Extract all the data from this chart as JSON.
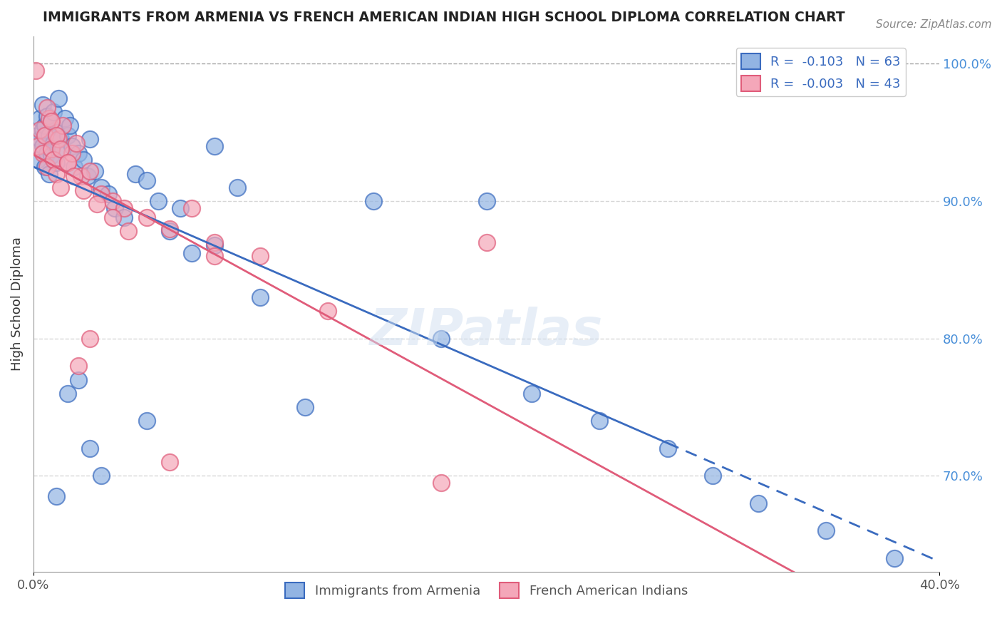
{
  "title": "IMMIGRANTS FROM ARMENIA VS FRENCH AMERICAN INDIAN HIGH SCHOOL DIPLOMA CORRELATION CHART",
  "source": "Source: ZipAtlas.com",
  "ylabel": "High School Diploma",
  "xmin": 0.0,
  "xmax": 0.4,
  "ymin": 0.63,
  "ymax": 1.02,
  "yticks": [
    0.7,
    0.8,
    0.9,
    1.0
  ],
  "ytick_labels": [
    "70.0%",
    "80.0%",
    "90.0%",
    "100.0%"
  ],
  "xtick_labels": [
    "0.0%",
    "40.0%"
  ],
  "legend_labels": [
    "Immigrants from Armenia",
    "French American Indians"
  ],
  "blue_color": "#92b4e3",
  "pink_color": "#f4a7b9",
  "blue_line_color": "#3a6bbf",
  "pink_line_color": "#e05c7a",
  "r_blue": -0.103,
  "n_blue": 63,
  "r_pink": -0.003,
  "n_pink": 43,
  "watermark": "ZIPatlas",
  "blue_scatter_x": [
    0.001,
    0.002,
    0.003,
    0.003,
    0.004,
    0.004,
    0.004,
    0.005,
    0.005,
    0.006,
    0.006,
    0.007,
    0.007,
    0.008,
    0.008,
    0.009,
    0.009,
    0.01,
    0.01,
    0.011,
    0.012,
    0.013,
    0.014,
    0.015,
    0.016,
    0.017,
    0.018,
    0.02,
    0.022,
    0.024,
    0.025,
    0.027,
    0.03,
    0.033,
    0.036,
    0.04,
    0.045,
    0.05,
    0.055,
    0.06,
    0.065,
    0.07,
    0.08,
    0.09,
    0.1,
    0.12,
    0.15,
    0.18,
    0.2,
    0.22,
    0.25,
    0.28,
    0.3,
    0.32,
    0.35,
    0.38,
    0.01,
    0.015,
    0.02,
    0.025,
    0.03,
    0.05,
    0.08
  ],
  "blue_scatter_y": [
    0.947,
    0.93,
    0.96,
    0.945,
    0.952,
    0.97,
    0.94,
    0.925,
    0.955,
    0.962,
    0.935,
    0.948,
    0.92,
    0.958,
    0.933,
    0.942,
    0.965,
    0.95,
    0.928,
    0.975,
    0.945,
    0.938,
    0.96,
    0.948,
    0.955,
    0.94,
    0.925,
    0.935,
    0.93,
    0.918,
    0.945,
    0.922,
    0.91,
    0.905,
    0.895,
    0.888,
    0.92,
    0.915,
    0.9,
    0.878,
    0.895,
    0.862,
    0.94,
    0.91,
    0.83,
    0.75,
    0.9,
    0.8,
    0.9,
    0.76,
    0.74,
    0.72,
    0.7,
    0.68,
    0.66,
    0.64,
    0.685,
    0.76,
    0.77,
    0.72,
    0.7,
    0.74,
    0.868
  ],
  "pink_scatter_x": [
    0.001,
    0.002,
    0.003,
    0.004,
    0.005,
    0.006,
    0.007,
    0.008,
    0.009,
    0.01,
    0.011,
    0.012,
    0.013,
    0.015,
    0.017,
    0.019,
    0.021,
    0.025,
    0.03,
    0.035,
    0.04,
    0.05,
    0.06,
    0.07,
    0.08,
    0.1,
    0.13,
    0.006,
    0.008,
    0.01,
    0.012,
    0.015,
    0.018,
    0.022,
    0.028,
    0.035,
    0.042,
    0.02,
    0.025,
    0.2,
    0.06,
    0.08,
    0.18
  ],
  "pink_scatter_y": [
    0.995,
    0.94,
    0.952,
    0.935,
    0.948,
    0.925,
    0.96,
    0.938,
    0.93,
    0.92,
    0.945,
    0.91,
    0.955,
    0.928,
    0.935,
    0.942,
    0.918,
    0.922,
    0.905,
    0.9,
    0.895,
    0.888,
    0.88,
    0.895,
    0.87,
    0.86,
    0.82,
    0.968,
    0.958,
    0.948,
    0.938,
    0.928,
    0.918,
    0.908,
    0.898,
    0.888,
    0.878,
    0.78,
    0.8,
    0.87,
    0.71,
    0.86,
    0.695
  ]
}
